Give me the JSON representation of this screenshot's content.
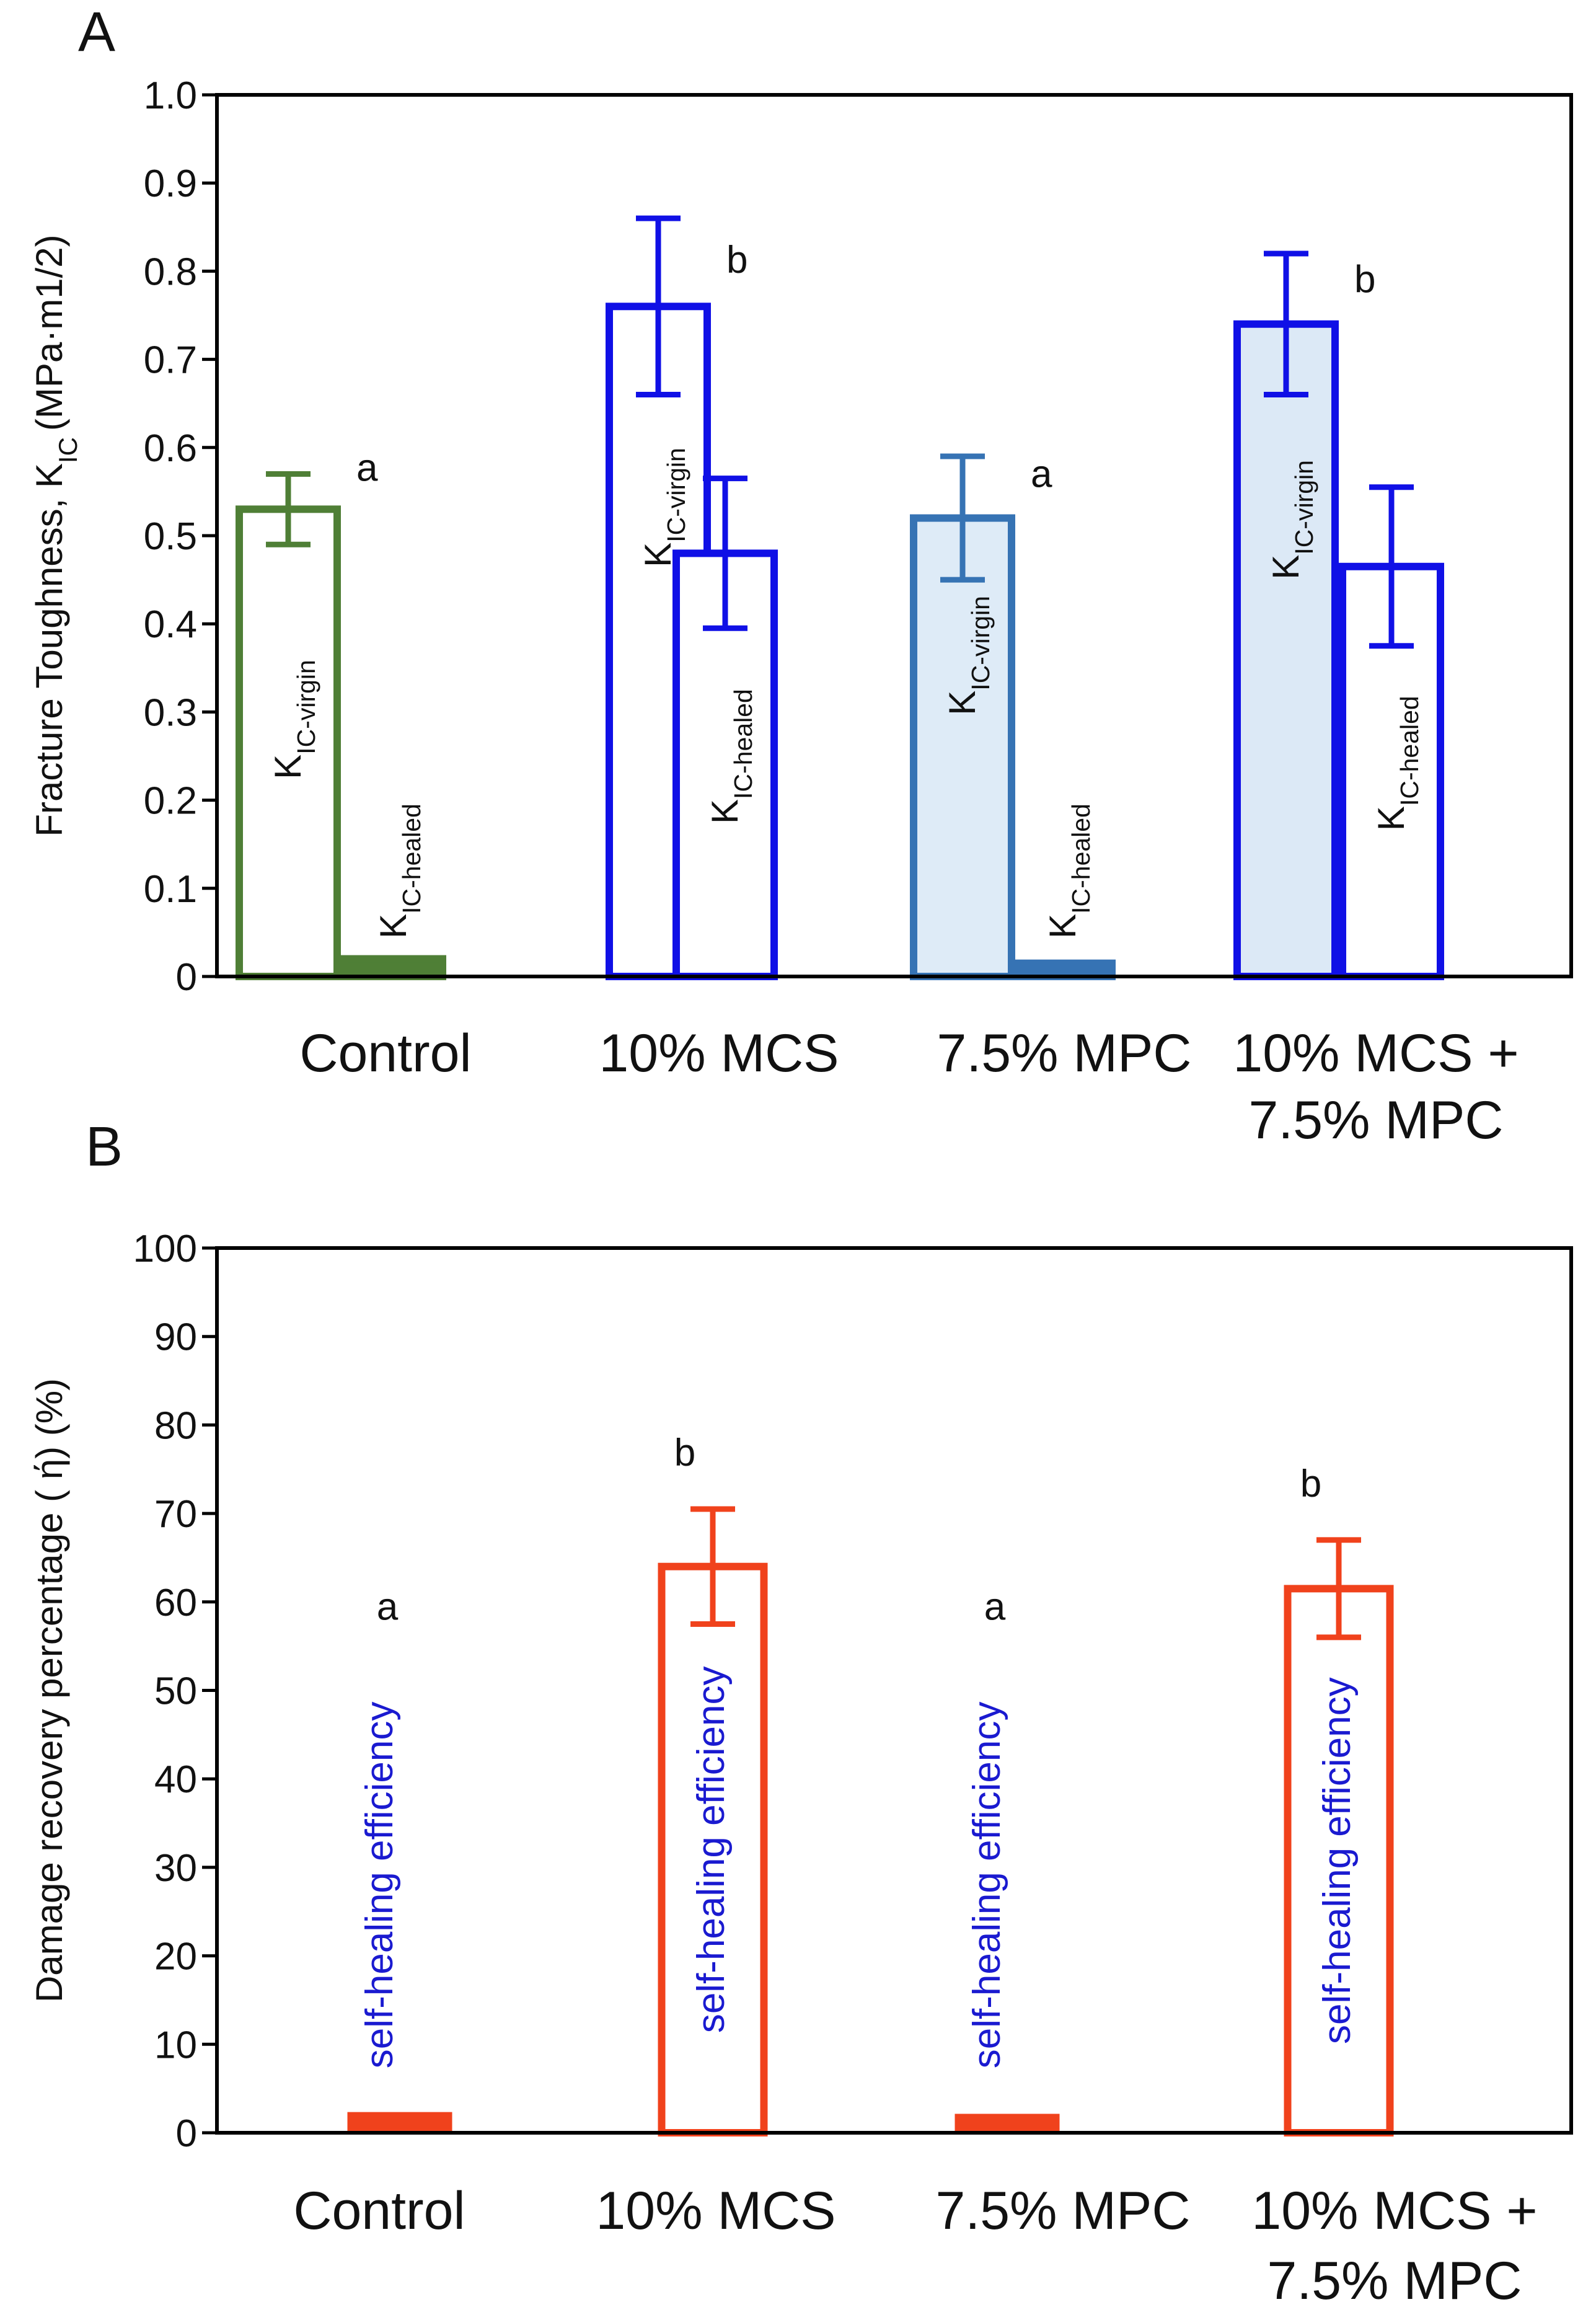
{
  "colors": {
    "control": "#4f7f36",
    "mcs": "#1010e6",
    "mpc": "#3673b4",
    "mpc_fill": "#deebf7",
    "combo_fill": "#dce9f6",
    "recovery": "#f0421c",
    "annotation": "#1a1ad0",
    "axis": "#000000"
  },
  "chart_data": [
    {
      "panel": "A",
      "type": "bar",
      "ylabel_main": "Fracture Toughness, K",
      "ylabel_sub": "IC",
      "ylabel_unit": "(MPa·m1/2)",
      "ylim": [
        0,
        1.0
      ],
      "yticks": [
        "0",
        "0.1",
        "0.2",
        "0.3",
        "0.4",
        "0.5",
        "0.6",
        "0.7",
        "0.8",
        "0.9",
        "1.0"
      ],
      "categories": [
        "Control",
        "10% MCS",
        "7.5% MPC",
        "10% MCS +"
      ],
      "categories_line2": [
        "",
        "",
        "",
        "7.5% MPC"
      ],
      "bar_label_main": "K",
      "virgin_sub": "IC-virgin",
      "healed_sub": "IC-healed",
      "series": [
        {
          "name": "K IC-virgin",
          "values": [
            0.53,
            0.76,
            0.52,
            0.74
          ],
          "errors": [
            0.04,
            0.1,
            0.07,
            0.08
          ],
          "letters": [
            "a",
            "b",
            "a",
            "b"
          ]
        },
        {
          "name": "K IC-healed",
          "values": [
            0.02,
            0.48,
            0.015,
            0.465
          ],
          "errors": [
            0,
            0.085,
            0,
            0.09
          ]
        }
      ]
    },
    {
      "panel": "B",
      "type": "bar",
      "ylabel": "Damage recovery percentage ( ή) (%)",
      "ylim": [
        0,
        100
      ],
      "yticks": [
        "0",
        "10",
        "20",
        "30",
        "40",
        "50",
        "60",
        "70",
        "80",
        "90",
        "100"
      ],
      "categories": [
        "Control",
        "10% MCS",
        "7.5% MPC",
        "10% MCS +"
      ],
      "categories_line2": [
        "",
        "",
        "",
        "7.5% MPC"
      ],
      "bar_annotation": "self-healing efficiency",
      "series": [
        {
          "name": "self-healing efficiency",
          "values": [
            2.2,
            64,
            2.0,
            61.5
          ],
          "errors": [
            0,
            6.5,
            0,
            5.5
          ],
          "letters": [
            "a",
            "b",
            "a",
            "b"
          ]
        }
      ]
    }
  ]
}
